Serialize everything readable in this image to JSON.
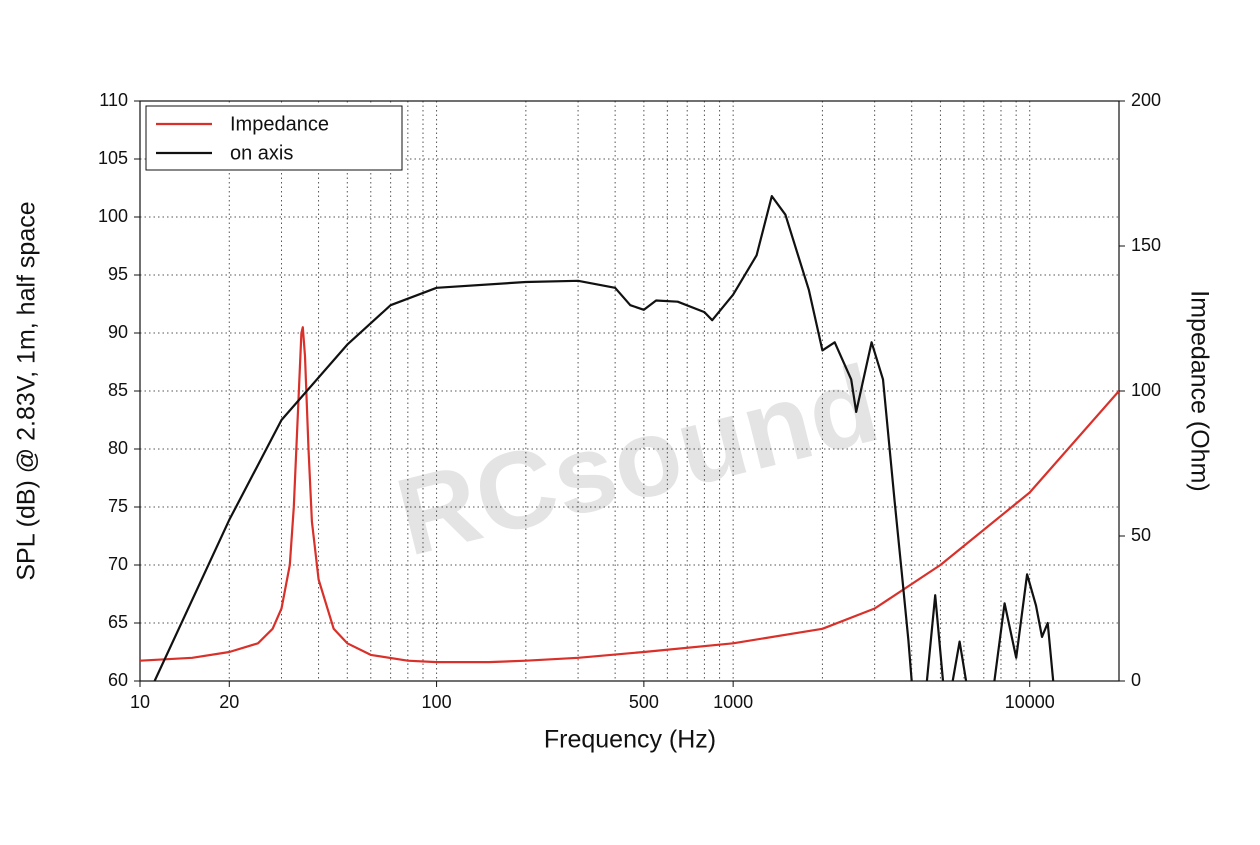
{
  "chart_data": {
    "type": "line",
    "xlabel": "Frequency (Hz)",
    "ylabel": "SPL (dB) @ 2.83V, 1m, half space",
    "y2label": "Impedance (Ohm)",
    "watermark": "RCsound",
    "xscale": "log",
    "xlim": [
      10,
      20000
    ],
    "xticks": [
      10,
      20,
      100,
      500,
      1000,
      10000
    ],
    "xgrid_minor": [
      30,
      40,
      50,
      60,
      70,
      80,
      90,
      200,
      300,
      400,
      600,
      700,
      800,
      900,
      2000,
      3000,
      4000,
      5000,
      6000,
      7000,
      8000,
      9000
    ],
    "ylim": [
      60,
      110
    ],
    "yticks": [
      60,
      65,
      70,
      75,
      80,
      85,
      90,
      95,
      100,
      105,
      110
    ],
    "y2lim": [
      0,
      200
    ],
    "y2ticks": [
      0,
      50,
      100,
      150,
      200
    ],
    "grid": true,
    "legend": "upper left",
    "series": [
      {
        "name": "Impedance",
        "color": "#d9302a",
        "axis": "y2",
        "x": [
          10,
          15,
          20,
          25,
          28,
          30,
          32,
          33,
          34,
          35,
          35.4,
          36,
          37,
          38,
          40,
          45,
          50,
          60,
          80,
          100,
          150,
          200,
          300,
          500,
          1000,
          2000,
          3000,
          5000,
          10000,
          20000
        ],
        "values": [
          7,
          8,
          10,
          13,
          18,
          25,
          40,
          60,
          90,
          120,
          122,
          112,
          80,
          55,
          35,
          18,
          13,
          9,
          7,
          6.5,
          6.5,
          7,
          8,
          10,
          13,
          18,
          25,
          40,
          65,
          100
        ]
      },
      {
        "name": "on axis",
        "color": "#111111",
        "x": [
          11.2,
          20,
          30,
          50,
          70,
          100,
          200,
          300,
          400,
          450,
          500,
          550,
          650,
          800,
          850,
          1000,
          1200,
          1350,
          1500,
          1800,
          2000,
          2200,
          2500,
          2600,
          2930,
          3200,
          3500,
          3700,
          3900,
          4000,
          4200,
          4500,
          4800,
          5100,
          5300,
          5500,
          5800,
          6100,
          7000,
          7600,
          8230,
          9000,
          9800,
          10500,
          11000,
          11500,
          12000
        ],
        "values": [
          60,
          73.9,
          82.5,
          89,
          92.4,
          93.9,
          94.4,
          94.5,
          93.9,
          92.4,
          92,
          92.8,
          92.7,
          91.8,
          91.1,
          93.3,
          96.7,
          101.8,
          100.2,
          93.7,
          88.5,
          89.2,
          86,
          83.2,
          89.2,
          86,
          75.6,
          69.4,
          63.5,
          60,
          null,
          60,
          67.4,
          60,
          null,
          60,
          63.4,
          60,
          null,
          60,
          66.7,
          62,
          69.2,
          66.5,
          63.8,
          65,
          60
        ]
      }
    ]
  }
}
